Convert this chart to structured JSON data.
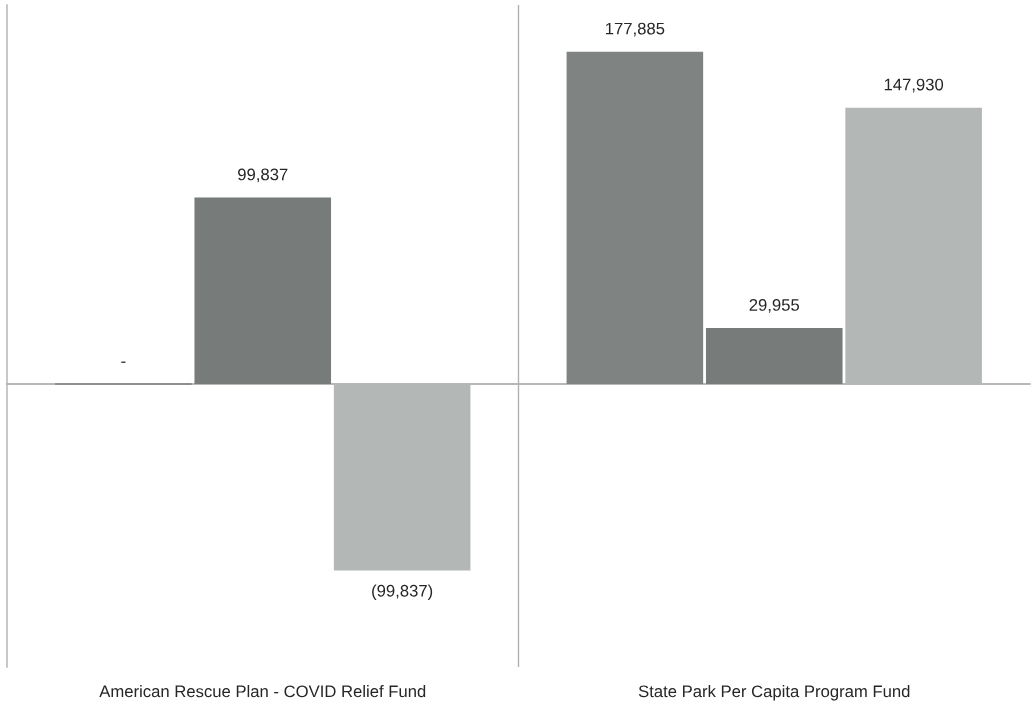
{
  "chart_data": {
    "type": "bar",
    "categories": [
      "American Rescue Plan - COVID Relief Fund",
      "State Park Per Capita Program Fund"
    ],
    "series": [
      {
        "color": "#7f8381",
        "values": [
          0,
          177885
        ],
        "value_labels": [
          "-",
          "177,885"
        ]
      },
      {
        "color": "#777b79",
        "values": [
          99837,
          29955
        ],
        "value_labels": [
          "99,837",
          "29,955"
        ]
      },
      {
        "color": "#b3b7b5",
        "values": [
          -99837,
          147930
        ],
        "value_labels": [
          "(99,837)",
          "147,930"
        ]
      }
    ],
    "tick_labels": "x",
    "grid": "x"
  }
}
